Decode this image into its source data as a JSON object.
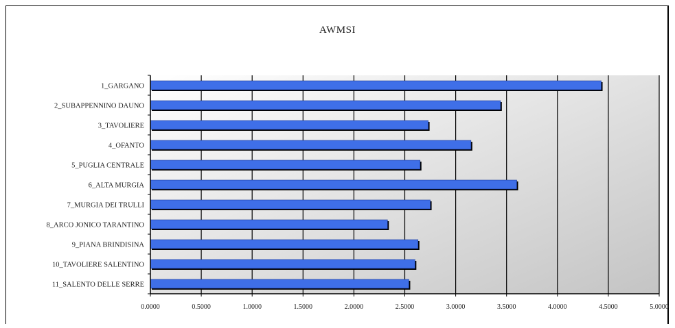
{
  "chart_data": {
    "type": "bar",
    "orientation": "horizontal",
    "title": "AWMSI",
    "xlabel": "",
    "ylabel": "",
    "xlim": [
      0,
      5
    ],
    "grid": true,
    "legend": "none",
    "bar_color": "#3f6fe8",
    "categories": [
      "1_GARGANO",
      "2_SUBAPPENNINO DAUNO",
      "3_TAVOLIERE",
      "4_OFANTO",
      "5_PUGLIA CENTRALE",
      "6_ALTA MURGIA",
      "7_MURGIA DEI TRULLI",
      "8_ARCO JONICO TARANTINO",
      "9_PIANA BRINDISINA",
      "10_TAVOLIERE SALENTINO",
      "11_SALENTO DELLE SERRE"
    ],
    "values": [
      4.43,
      3.44,
      2.73,
      3.15,
      2.65,
      3.6,
      2.75,
      2.33,
      2.63,
      2.6,
      2.54
    ],
    "tick_labels": [
      "0.0000",
      "0.5000",
      "1.0000",
      "1.5000",
      "2.0000",
      "2.5000",
      "3.0000",
      "3.5000",
      "4.0000",
      "4.5000",
      "5.0000"
    ]
  }
}
